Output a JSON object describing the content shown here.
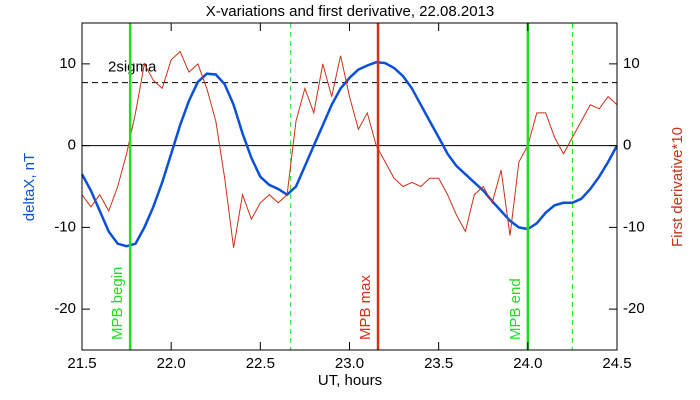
{
  "chart_data": {
    "type": "line",
    "title": "X-variations and first derivative, 22.08.2013",
    "xlabel": "UT, hours",
    "ylabel": "deltaX, nT",
    "y2label": "First derivative*10",
    "x": [
      21.5,
      21.55,
      21.6,
      21.65,
      21.7,
      21.75,
      21.8,
      21.85,
      21.9,
      21.95,
      22.0,
      22.05,
      22.1,
      22.15,
      22.2,
      22.25,
      22.3,
      22.35,
      22.4,
      22.45,
      22.5,
      22.55,
      22.6,
      22.65,
      22.7,
      22.75,
      22.8,
      22.85,
      22.9,
      22.95,
      23.0,
      23.05,
      23.1,
      23.15,
      23.2,
      23.25,
      23.3,
      23.35,
      23.4,
      23.45,
      23.5,
      23.55,
      23.6,
      23.65,
      23.7,
      23.75,
      23.8,
      23.85,
      23.9,
      23.95,
      24.0,
      24.05,
      24.1,
      24.15,
      24.2,
      24.25,
      24.3,
      24.35,
      24.4,
      24.45,
      24.5
    ],
    "series": [
      {
        "name": "deltaX, nT",
        "color": "#0a50d8",
        "values": [
          -3.5,
          -5.5,
          -8,
          -10.5,
          -12,
          -12.3,
          -12,
          -10,
          -7.5,
          -4.5,
          -1,
          2.5,
          5.5,
          7.8,
          8.8,
          8.7,
          7.5,
          5,
          1.5,
          -1.5,
          -3.8,
          -4.8,
          -5.3,
          -6,
          -5,
          -2.5,
          0,
          2.5,
          5,
          7,
          8.3,
          9.3,
          9.8,
          10.2,
          10.1,
          9.5,
          8.5,
          7,
          5,
          3,
          1,
          -1,
          -2.5,
          -3.5,
          -4.5,
          -5.5,
          -6.8,
          -8,
          -9.2,
          -10,
          -10.2,
          -9.5,
          -8.2,
          -7.3,
          -7,
          -7,
          -6.5,
          -5.3,
          -3.8,
          -2,
          0
        ]
      },
      {
        "name": "First derivative*10",
        "color": "#c83218",
        "axis": "y2",
        "values": [
          -6,
          -7.5,
          -6,
          -8,
          -5,
          -1,
          4,
          10,
          8,
          7,
          10.5,
          11.5,
          9,
          10,
          7,
          3,
          -4,
          -12.5,
          -6,
          -9,
          -7,
          -6,
          -7,
          -6,
          3,
          7,
          4,
          10,
          6,
          11,
          6,
          2,
          4,
          0,
          -2,
          -4,
          -5,
          -4.5,
          -5,
          -4,
          -4,
          -6,
          -8.5,
          -10.5,
          -6,
          -5,
          -7,
          -3,
          -11,
          -2,
          0,
          4,
          4,
          1,
          -1,
          1,
          3,
          5,
          4.5,
          6,
          5
        ]
      }
    ],
    "xlim": [
      21.5,
      24.5
    ],
    "xticks": [
      21.5,
      {
        "value": 22,
        "label": "22.0"
      },
      22.5,
      {
        "value": 23,
        "label": "23.0"
      },
      23.5,
      {
        "value": 24,
        "label": "24.0"
      },
      24.5
    ],
    "ylim": [
      -25,
      15
    ],
    "yticks": [
      -20,
      -10,
      0,
      10
    ],
    "y2lim": [
      -25,
      15
    ],
    "y2ticks": [
      -20,
      -10,
      0,
      10
    ],
    "threshold": {
      "value": 7.7,
      "label": "2sigma"
    },
    "markers": [
      {
        "x": 21.77,
        "label": "MPB begin",
        "color": "#22dd22"
      },
      {
        "x": 23.16,
        "label": "MPB max",
        "color": "#d83018"
      },
      {
        "x": 24.0,
        "label": "MPB end",
        "color": "#22dd22"
      }
    ],
    "dashed_markers": [
      22.67,
      24.25
    ],
    "dashed_color": "#22dd22"
  }
}
